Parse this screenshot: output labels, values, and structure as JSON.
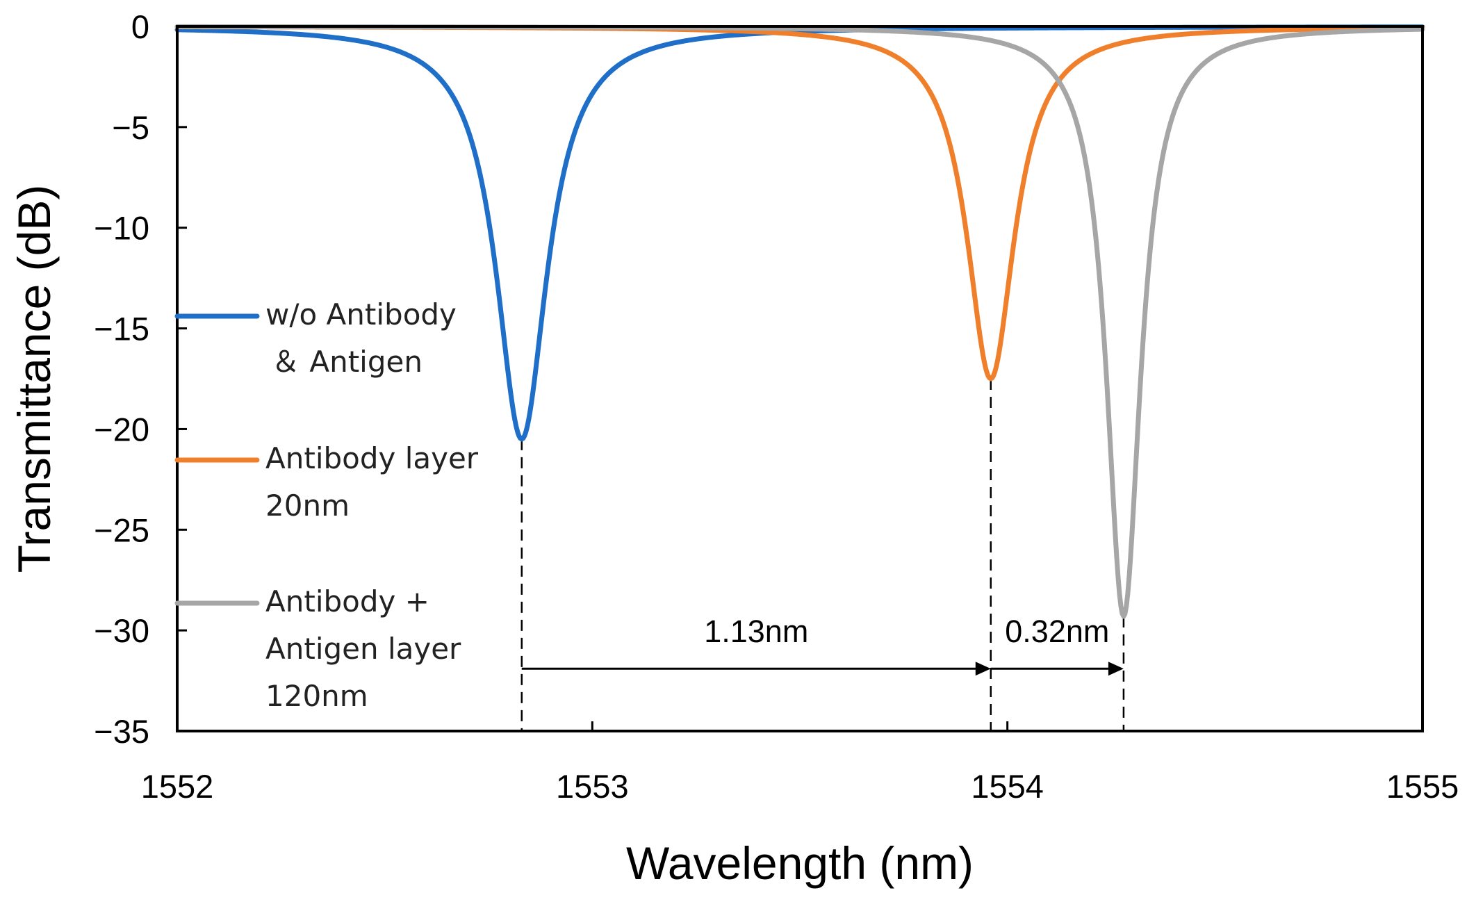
{
  "chart_data": {
    "type": "line",
    "title": "",
    "xlabel": "Wavelength (nm)",
    "ylabel": "Transmittance (dB)",
    "xlim": [
      1552,
      1555
    ],
    "ylim": [
      -35,
      0
    ],
    "xticks": [
      1552,
      1553,
      1554,
      1555
    ],
    "yticks": [
      0,
      -5,
      -10,
      -15,
      -20,
      -25,
      -30,
      -35
    ],
    "xtick_labels": [
      "1552",
      "1553",
      "1554",
      "1555"
    ],
    "ytick_labels": [
      "0",
      "−5",
      "−10",
      "−15",
      "−20",
      "−25",
      "−30",
      "−35"
    ],
    "grid": false,
    "legend_position": "left",
    "series": [
      {
        "name": "w/o Antibody & Antigen",
        "legend_lines": [
          "w/o Antibody",
          "＆ Antigen"
        ],
        "color": "#1f6fc8",
        "resonance_nm": 1552.83,
        "min_db": -20.5,
        "width_nm": 0.075
      },
      {
        "name": "Antibody layer 20nm",
        "legend_lines": [
          "Antibody layer",
          "20nm"
        ],
        "color": "#f07f2b",
        "resonance_nm": 1553.96,
        "min_db": -17.5,
        "width_nm": 0.07
      },
      {
        "name": "Antibody + Antigen layer 120nm",
        "legend_lines": [
          "Antibody +",
          "Antigen layer",
          "120nm"
        ],
        "color": "#a6a6a6",
        "resonance_nm": 1554.28,
        "min_db": -29.3,
        "width_nm": 0.05
      }
    ],
    "annotations": [
      {
        "label": "1.13nm",
        "from_nm": 1552.83,
        "to_nm": 1553.96,
        "y_db": -31.9
      },
      {
        "label": "0.32nm",
        "from_nm": 1553.96,
        "to_nm": 1554.28,
        "y_db": -31.9
      }
    ]
  }
}
